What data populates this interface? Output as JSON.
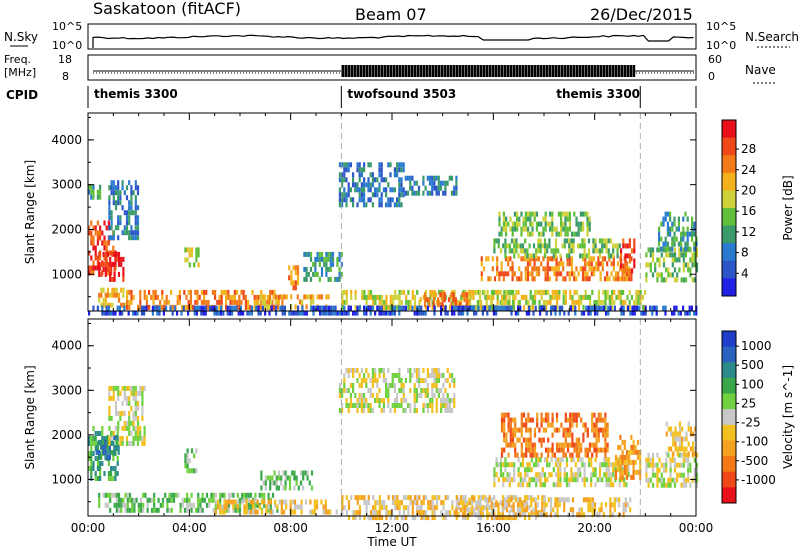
{
  "header": {
    "title": "Saskatoon (fitACF)",
    "beam": "Beam 07",
    "date": "26/Dec/2015"
  },
  "strip_panels": {
    "nsky": {
      "left_label": "N.Sky",
      "right_label": "N.Search",
      "left_ticks": [
        "10^5",
        "10^0"
      ],
      "right_ticks": [
        "10^5",
        "10^0"
      ]
    },
    "freq": {
      "left_label_line1": "Freq.",
      "left_label_line2": "[MHz]",
      "right_label": "Nave",
      "left_ticks": [
        "18",
        "8"
      ],
      "right_ticks": [
        "60",
        "0"
      ]
    },
    "cpid": {
      "label": "CPID",
      "segments": [
        {
          "name": "themis 3300",
          "start_hour": 0,
          "end_hour": 10
        },
        {
          "name": "twofsound 3503",
          "start_hour": 10,
          "end_hour": 21.8
        },
        {
          "name": "themis 3300",
          "start_hour": 21.8,
          "end_hour": 24
        }
      ]
    }
  },
  "chart_data": [
    {
      "type": "heatmap",
      "name": "power",
      "ylabel": "Slant Range [km]",
      "xlabel": "",
      "xlim": [
        0,
        24
      ],
      "ylim": [
        180,
        4600
      ],
      "yticks": [
        "1000",
        "2000",
        "3000",
        "4000"
      ],
      "colorbar_label": "Power [dB]",
      "colorbar_ticks": [
        "4",
        "8",
        "12",
        "16",
        "20",
        "24",
        "28"
      ],
      "colorbar_colors": [
        "#1f1fe6",
        "#2c56c8",
        "#2a7ad0",
        "#3a9a6a",
        "#5fbf3a",
        "#cfd23a",
        "#f3b21c",
        "#f27a18",
        "#f04818",
        "#e8101a"
      ],
      "regions": [
        {
          "t0": 0.0,
          "t1": 1.1,
          "r0": 1000,
          "r1": 2200,
          "level": 8
        },
        {
          "t0": 0.4,
          "t1": 1.4,
          "r0": 900,
          "r1": 1500,
          "level": 9
        },
        {
          "t0": 0.0,
          "t1": 0.5,
          "r0": 2700,
          "r1": 3000,
          "level": 3
        },
        {
          "t0": 0.8,
          "t1": 2.0,
          "r0": 1800,
          "r1": 3100,
          "level": 2
        },
        {
          "t0": 3.8,
          "t1": 4.4,
          "r0": 1200,
          "r1": 1600,
          "level": 5
        },
        {
          "t0": 0.4,
          "t1": 1.5,
          "r0": 350,
          "r1": 700,
          "level": 6
        },
        {
          "t0": 1.5,
          "t1": 7.5,
          "r0": 300,
          "r1": 650,
          "level": 7
        },
        {
          "t0": 6.5,
          "t1": 9.5,
          "r0": 250,
          "r1": 550,
          "level": 6
        },
        {
          "t0": 7.9,
          "t1": 8.3,
          "r0": 700,
          "r1": 1200,
          "level": 7
        },
        {
          "t0": 9.9,
          "t1": 12.5,
          "r0": 2600,
          "r1": 3500,
          "level": 2
        },
        {
          "t0": 12.5,
          "t1": 14.5,
          "r0": 2800,
          "r1": 3200,
          "level": 2
        },
        {
          "t0": 10.0,
          "t1": 17.0,
          "r0": 250,
          "r1": 650,
          "level": 5
        },
        {
          "t0": 13.0,
          "t1": 15.0,
          "r0": 300,
          "r1": 600,
          "level": 7
        },
        {
          "t0": 15.5,
          "t1": 21.5,
          "r0": 900,
          "r1": 1400,
          "level": 7
        },
        {
          "t0": 16.0,
          "t1": 21.0,
          "r0": 1400,
          "r1": 1800,
          "level": 4
        },
        {
          "t0": 16.2,
          "t1": 19.8,
          "r0": 1900,
          "r1": 2400,
          "level": 4
        },
        {
          "t0": 15.0,
          "t1": 22.0,
          "r0": 250,
          "r1": 650,
          "level": 5
        },
        {
          "t0": 21.0,
          "t1": 21.6,
          "r0": 1100,
          "r1": 1800,
          "level": 8
        },
        {
          "t0": 22.0,
          "t1": 24.0,
          "r0": 900,
          "r1": 1600,
          "level": 4
        },
        {
          "t0": 22.5,
          "t1": 24.0,
          "r0": 1600,
          "r1": 2400,
          "level": 3
        },
        {
          "t0": 8.5,
          "t1": 10.0,
          "r0": 900,
          "r1": 1500,
          "level": 3
        },
        {
          "t0": 0.0,
          "t1": 24.0,
          "r0": 180,
          "r1": 300,
          "level": 1
        }
      ]
    },
    {
      "type": "heatmap",
      "name": "velocity",
      "ylabel": "Slant Range [km]",
      "xlabel": "Time UT",
      "xlim": [
        0,
        24
      ],
      "ylim": [
        180,
        4600
      ],
      "xticks": [
        "00:00",
        "04:00",
        "08:00",
        "12:00",
        "16:00",
        "20:00",
        "00:00"
      ],
      "yticks": [
        "1000",
        "2000",
        "3000",
        "4000"
      ],
      "colorbar_label": "Velocity [m s^-1]",
      "colorbar_ticks": [
        "1000",
        "500",
        "100",
        "25",
        "-25",
        "-100",
        "-500",
        "-1000"
      ],
      "colorbar_colors": [
        "#1f3fc8",
        "#2a62c0",
        "#2c8a8a",
        "#3aa84a",
        "#6fd040",
        "#c8c8c8",
        "#f2c020",
        "#f4a020",
        "#f27818",
        "#f04818",
        "#e8101a"
      ],
      "regions": [
        {
          "t0": 0.0,
          "t1": 1.2,
          "r0": 1000,
          "r1": 2200,
          "level": 3
        },
        {
          "t0": 0.3,
          "t1": 1.2,
          "r0": 1500,
          "r1": 2000,
          "level": 2
        },
        {
          "t0": 0.8,
          "t1": 2.2,
          "r0": 1800,
          "r1": 3100,
          "level": 5
        },
        {
          "t0": 3.8,
          "t1": 4.3,
          "r0": 1200,
          "r1": 1700,
          "level": 4
        },
        {
          "t0": 0.4,
          "t1": 7.5,
          "r0": 300,
          "r1": 700,
          "level": 4
        },
        {
          "t0": 5.0,
          "t1": 9.8,
          "r0": 250,
          "r1": 550,
          "level": 6
        },
        {
          "t0": 9.9,
          "t1": 14.5,
          "r0": 2600,
          "r1": 3500,
          "level": 5
        },
        {
          "t0": 10.0,
          "t1": 18.0,
          "r0": 200,
          "r1": 650,
          "level": 6
        },
        {
          "t0": 14.5,
          "t1": 21.5,
          "r0": 200,
          "r1": 600,
          "level": 6
        },
        {
          "t0": 16.0,
          "t1": 21.3,
          "r0": 900,
          "r1": 1500,
          "level": 5
        },
        {
          "t0": 16.3,
          "t1": 20.5,
          "r0": 1600,
          "r1": 2500,
          "level": 8
        },
        {
          "t0": 20.8,
          "t1": 21.8,
          "r0": 1000,
          "r1": 2000,
          "level": 7
        },
        {
          "t0": 22.0,
          "t1": 24.0,
          "r0": 900,
          "r1": 1600,
          "level": 5
        },
        {
          "t0": 22.8,
          "t1": 24.0,
          "r0": 1600,
          "r1": 2300,
          "level": 6
        },
        {
          "t0": 6.8,
          "t1": 8.8,
          "r0": 800,
          "r1": 1200,
          "level": 4
        }
      ]
    }
  ]
}
